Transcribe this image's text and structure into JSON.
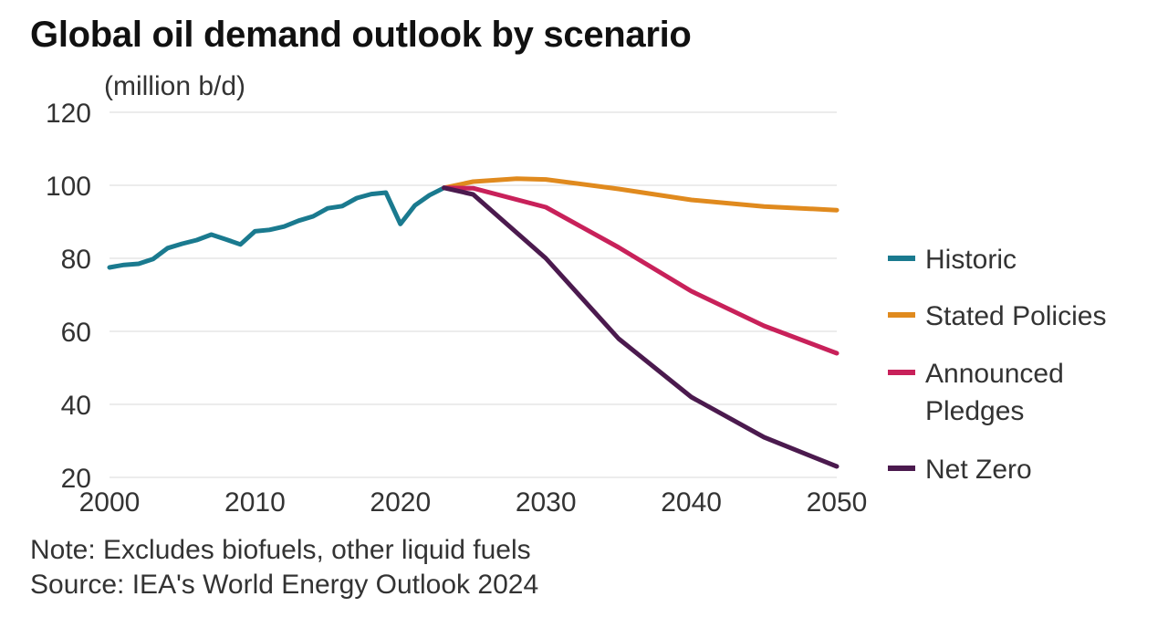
{
  "chart_data": {
    "type": "line",
    "title": "Global oil demand outlook by scenario",
    "ylabel": "(million b/d)",
    "xlabel": "",
    "xlim": [
      2000,
      2050
    ],
    "ylim": [
      20,
      120
    ],
    "x_ticks": [
      2000,
      2010,
      2020,
      2030,
      2040,
      2050
    ],
    "y_ticks": [
      20,
      40,
      60,
      80,
      100,
      120
    ],
    "grid": "horizontal",
    "legend_position": "right",
    "series": [
      {
        "name": "Historic",
        "color": "#1a7a8f",
        "x": [
          2000,
          2001,
          2002,
          2003,
          2004,
          2005,
          2006,
          2007,
          2008,
          2009,
          2010,
          2011,
          2012,
          2013,
          2014,
          2015,
          2016,
          2017,
          2018,
          2019,
          2020,
          2021,
          2022,
          2023
        ],
        "y": [
          77.5,
          78.2,
          78.5,
          79.8,
          82.8,
          84.0,
          85.0,
          86.5,
          85.2,
          83.8,
          87.4,
          87.8,
          88.7,
          90.3,
          91.5,
          93.7,
          94.3,
          96.5,
          97.6,
          98.0,
          89.4,
          94.5,
          97.3,
          99.3
        ]
      },
      {
        "name": "Stated Policies",
        "color": "#e08a1e",
        "x": [
          2023,
          2025,
          2028,
          2030,
          2035,
          2040,
          2045,
          2050
        ],
        "y": [
          99.3,
          101.0,
          101.8,
          101.6,
          99.0,
          96.0,
          94.2,
          93.2
        ]
      },
      {
        "name": "Announced Pledges",
        "color": "#c8215a",
        "x": [
          2023,
          2025,
          2030,
          2035,
          2040,
          2045,
          2050
        ],
        "y": [
          99.3,
          99.2,
          94.0,
          83.0,
          71.0,
          61.5,
          54.0
        ]
      },
      {
        "name": "Net Zero",
        "color": "#4b1a4e",
        "x": [
          2023,
          2025,
          2030,
          2035,
          2040,
          2045,
          2050
        ],
        "y": [
          99.3,
          97.5,
          80.0,
          58.0,
          42.0,
          31.0,
          23.0
        ]
      }
    ],
    "legend_entries": [
      {
        "lines": [
          "Historic"
        ],
        "color": "#1a7a8f"
      },
      {
        "lines": [
          "Stated Policies"
        ],
        "color": "#e08a1e"
      },
      {
        "lines": [
          "Announced",
          "Pledges"
        ],
        "color": "#c8215a"
      },
      {
        "lines": [
          "Net Zero"
        ],
        "color": "#4b1a4e"
      }
    ]
  },
  "footer": {
    "note": "Note: Excludes biofuels, other liquid fuels",
    "source": "Source: IEA's World Energy Outlook 2024"
  }
}
